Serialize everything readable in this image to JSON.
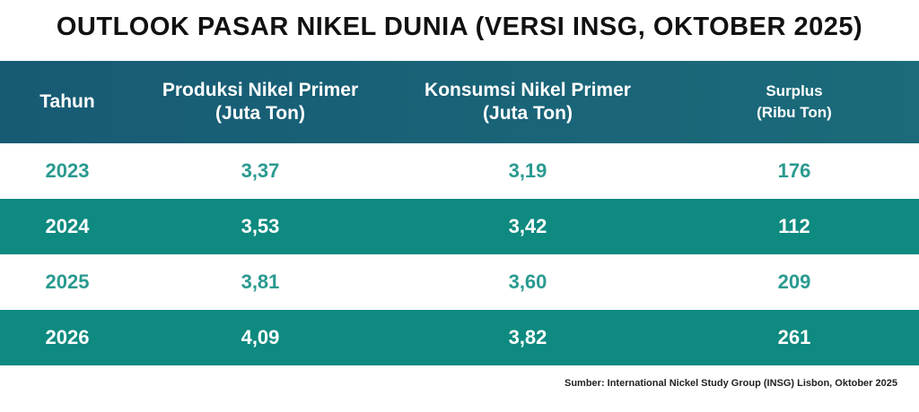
{
  "title": "OUTLOOK PASAR NIKEL DUNIA (VERSI INSG, OKTOBER 2025)",
  "table": {
    "header": [
      [
        "Tahun"
      ],
      [
        "Produksi Nikel Primer",
        "(Juta Ton)"
      ],
      [
        "Konsumsi Nikel Primer",
        "(Juta Ton)"
      ],
      [
        "Surplus",
        "(Ribu Ton)"
      ]
    ],
    "rows": [
      [
        "2023",
        "3,37",
        "3,19",
        "176"
      ],
      [
        "2024",
        "3,53",
        "3,42",
        "112"
      ],
      [
        "2025",
        "3,81",
        "3,60",
        "209"
      ],
      [
        "2026",
        "4,09",
        "3,82",
        "261"
      ]
    ]
  },
  "source": "Sumber: International Nickel Study Group (INSG) Lisbon, Oktober 2025"
}
